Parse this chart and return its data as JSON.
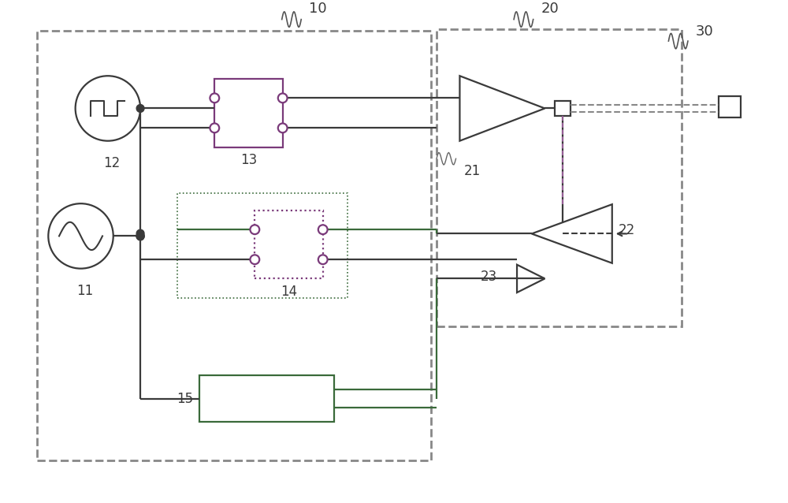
{
  "bg_color": "#ffffff",
  "lc": "#3a3a3a",
  "gc": "#3a6a3a",
  "pc": "#7a3a7a",
  "dc": "#888888",
  "fig_w": 10.0,
  "fig_h": 6.38,
  "dpi": 100
}
